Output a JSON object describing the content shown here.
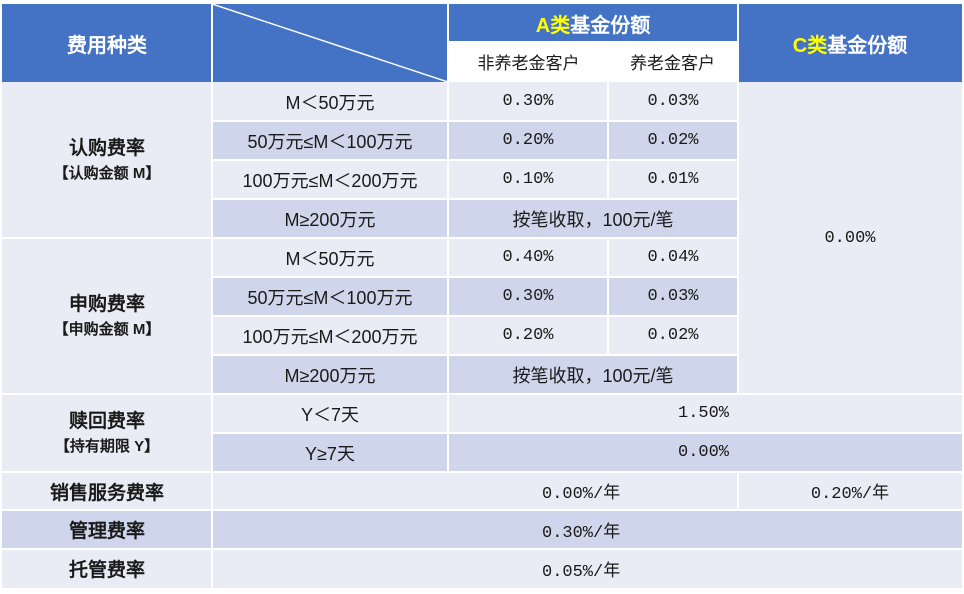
{
  "header": {
    "fee_type": "费用种类",
    "a_class_prefix": "A类",
    "a_class_suffix": "基金份额",
    "c_class_prefix": "C类",
    "c_class_suffix": "基金份额",
    "non_pension_client": "非养老金客户",
    "pension_client": "养老金客户"
  },
  "subscription": {
    "title": "认购费率",
    "subtitle": "【认购金额 M】",
    "rows": [
      {
        "range": "M＜50万元",
        "non_pension": "0.30%",
        "pension": "0.03%"
      },
      {
        "range": "50万元≤M＜100万元",
        "non_pension": "0.20%",
        "pension": "0.02%"
      },
      {
        "range": "100万元≤M＜200万元",
        "non_pension": "0.10%",
        "pension": "0.01%"
      },
      {
        "range": "M≥200万元",
        "fixed": "按笔收取，100元/笔"
      }
    ]
  },
  "purchase": {
    "title": "申购费率",
    "subtitle": "【申购金额 M】",
    "rows": [
      {
        "range": "M＜50万元",
        "non_pension": "0.40%",
        "pension": "0.04%"
      },
      {
        "range": "50万元≤M＜100万元",
        "non_pension": "0.30%",
        "pension": "0.03%"
      },
      {
        "range": "100万元≤M＜200万元",
        "non_pension": "0.20%",
        "pension": "0.02%"
      },
      {
        "range": "M≥200万元",
        "fixed": "按笔收取，100元/笔"
      }
    ]
  },
  "c_class_subscription_purchase": "0.00%",
  "redemption": {
    "title": "赎回费率",
    "subtitle": "【持有期限 Y】",
    "rows": [
      {
        "range": "Y＜7天",
        "value": "1.50%"
      },
      {
        "range": "Y≥7天",
        "value": "0.00%"
      }
    ]
  },
  "sales_service": {
    "title": "销售服务费率",
    "a_value": "0.00%/年",
    "c_value": "0.20%/年"
  },
  "management": {
    "title": "管理费率",
    "value": "0.30%/年"
  },
  "custody": {
    "title": "托管费率",
    "value": "0.05%/年"
  },
  "colors": {
    "header_blue": "#4472c4",
    "accent_yellow": "#ffff00",
    "row_light": "#e9ecf4",
    "row_medium": "#cfd5ea"
  }
}
